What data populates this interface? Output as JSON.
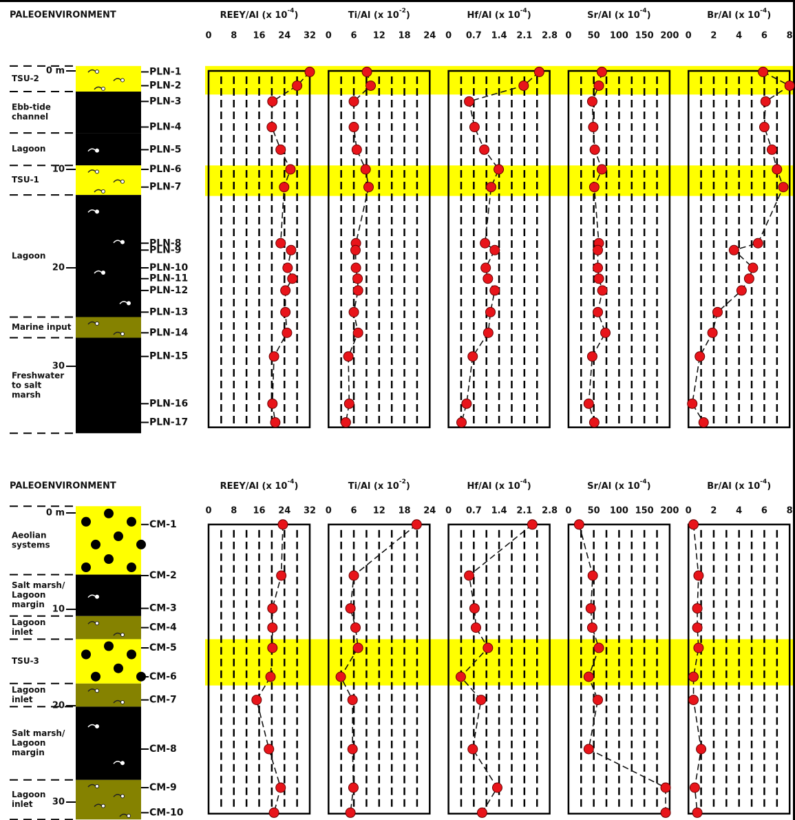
{
  "cores": [
    {
      "header": "PALEOENVIRONMENT",
      "ylim": [
        0,
        36.2
      ],
      "yticks": [
        {
          "value": 0,
          "label": "0 m"
        },
        10,
        20,
        30
      ],
      "samples": {
        "names": [
          "PLN-1",
          "PLN-2",
          "PLN-3",
          "PLN-4",
          "PLN-5",
          "PLN-6",
          "PLN-7",
          "PLN-8",
          "PLN-9",
          "PLN-10",
          "PLN-11",
          "PLN-12",
          "PLN-13",
          "PLN-14",
          "PLN-15",
          "PLN-16",
          "PLN-17"
        ],
        "depths": [
          0.1,
          1.5,
          3.1,
          5.7,
          8.0,
          10.0,
          11.8,
          17.5,
          18.2,
          20.0,
          21.1,
          22.3,
          24.5,
          26.6,
          29.0,
          33.8,
          35.7
        ]
      },
      "highlights": [
        [
          -0.5,
          2.4
        ],
        [
          9.6,
          12.7
        ]
      ],
      "highlight_color": "#ffff00",
      "layers": [
        {
          "label": [
            "TSU-2"
          ],
          "label_color": "#ff0000",
          "top": -0.5,
          "bottom": 2.1,
          "fill": "#ffff00",
          "pattern": "shells"
        },
        {
          "label": [
            "Ebb-tide",
            "channel"
          ],
          "top": 2.1,
          "bottom": 6.3,
          "fill": "#000000",
          "pattern": "none"
        },
        {
          "label": [
            "Lagoon"
          ],
          "top": 6.3,
          "bottom": 9.6,
          "fill": "#000000",
          "pattern": "white-shells"
        },
        {
          "label": [
            "TSU-1"
          ],
          "label_color": "#ff0000",
          "top": 9.6,
          "bottom": 12.6,
          "fill": "#ffff00",
          "pattern": "shells"
        },
        {
          "label": [
            "Lagoon"
          ],
          "top": 12.6,
          "bottom": 25.0,
          "fill": "#000000",
          "pattern": "white-shells"
        },
        {
          "label": [
            "Marine input"
          ],
          "top": 25.0,
          "bottom": 27.1,
          "fill": "#858200",
          "pattern": "shells"
        },
        {
          "label": [
            "Freshwater",
            "to salt",
            "marsh"
          ],
          "top": 27.1,
          "bottom": 36.8,
          "fill": "#000000",
          "pattern": "none"
        }
      ],
      "chart_data": [
        {
          "type": "line",
          "title": "REEY/Al (x 10",
          "title_exponent": "-4",
          "title_suffix": ")",
          "xlim": [
            0,
            32
          ],
          "xticks": [
            0,
            8,
            16,
            24,
            32
          ],
          "grid": true,
          "color": "#e8141a",
          "values": [
            32,
            28,
            20.2,
            20,
            22.8,
            25.9,
            23.9,
            22.8,
            26.1,
            25,
            26.5,
            24.3,
            24.3,
            24.8,
            20.7,
            20.2,
            21.1
          ]
        },
        {
          "type": "line",
          "title": "Ti/Al (x 10",
          "title_exponent": "-2",
          "title_suffix": ")",
          "xlim": [
            0,
            24
          ],
          "xticks": [
            0,
            6,
            12,
            18,
            24
          ],
          "grid": true,
          "color": "#e8141a",
          "values": [
            9.1,
            10,
            6,
            6,
            6.7,
            8.8,
            9.5,
            6.5,
            6.4,
            6.5,
            6.9,
            7,
            6,
            7,
            4.7,
            4.9,
            4.1
          ]
        },
        {
          "type": "line",
          "title": "Hf/Al (x 10",
          "title_exponent": "-4",
          "title_suffix": ")",
          "xlim": [
            0,
            2.8
          ],
          "xticks": [
            0,
            0.7,
            1.4,
            2.1,
            2.8
          ],
          "grid": true,
          "color": "#e8141a",
          "values": [
            2.51,
            2.08,
            0.57,
            0.72,
            0.99,
            1.39,
            1.18,
            1.01,
            1.28,
            1.03,
            1.09,
            1.28,
            1.16,
            1.1,
            0.67,
            0.5,
            0.36
          ]
        },
        {
          "type": "line",
          "title": "Sr/Al (x 10",
          "title_exponent": "-4",
          "title_suffix": ")",
          "xlim": [
            0,
            200
          ],
          "xticks": [
            0,
            50,
            100,
            150,
            200
          ],
          "grid": true,
          "color": "#e8141a",
          "values": [
            66,
            60,
            47,
            49,
            52,
            66,
            51,
            60,
            58,
            58,
            60,
            67,
            58,
            73,
            47,
            40,
            51
          ]
        },
        {
          "type": "line",
          "title": "Br/Al (x 10",
          "title_exponent": "-4",
          "title_suffix": ")",
          "xlim": [
            0,
            8
          ],
          "xticks": [
            0,
            2,
            4,
            6,
            8
          ],
          "grid": true,
          "color": "#e8141a",
          "values": [
            5.9,
            8.0,
            6.1,
            6.0,
            6.6,
            7.0,
            7.5,
            5.5,
            3.6,
            5.1,
            4.8,
            4.2,
            2.3,
            1.9,
            0.9,
            0.3,
            1.2
          ]
        }
      ]
    },
    {
      "header": "PALEOENVIRONMENT",
      "ylim": [
        1.2,
        31.2
      ],
      "yticks": [
        {
          "value": 0,
          "label": "0 m"
        },
        10,
        20,
        30
      ],
      "samples": {
        "names": [
          "CM-1",
          "CM-2",
          "CM-3",
          "CM-4",
          "CM-5",
          "CM-6",
          "CM-7",
          "CM-8",
          "CM-9",
          "CM-10"
        ],
        "depths": [
          1.2,
          6.5,
          9.9,
          11.9,
          14.0,
          17.0,
          19.4,
          24.5,
          28.5,
          31.1
        ]
      },
      "highlights": [
        [
          13.1,
          17.9
        ]
      ],
      "highlight_color": "#ffff00",
      "layers": [
        {
          "label": [
            "Aeolian",
            "systems"
          ],
          "top": -0.7,
          "bottom": 6.4,
          "fill": "#ffff00",
          "pattern": "dots"
        },
        {
          "label": [
            "Salt marsh/",
            "Lagoon",
            "margin"
          ],
          "top": 6.4,
          "bottom": 10.7,
          "fill": "#000000",
          "pattern": "white-shells"
        },
        {
          "label": [
            "Lagoon",
            "inlet"
          ],
          "top": 10.7,
          "bottom": 13.1,
          "fill": "#858200",
          "pattern": "shells"
        },
        {
          "label": [
            "TSU-3"
          ],
          "label_color": "#ff0000",
          "top": 13.1,
          "bottom": 17.7,
          "fill": "#ffff00",
          "pattern": "dots"
        },
        {
          "label": [
            "Lagoon",
            "inlet"
          ],
          "top": 17.7,
          "bottom": 20.1,
          "fill": "#858200",
          "pattern": "shells"
        },
        {
          "label": [
            "Salt marsh/",
            "Lagoon",
            "margin"
          ],
          "top": 20.1,
          "bottom": 27.7,
          "fill": "#000000",
          "pattern": "white-shells"
        },
        {
          "label": [
            "Lagoon",
            "inlet"
          ],
          "top": 27.7,
          "bottom": 31.8,
          "fill": "#858200",
          "pattern": "shells"
        }
      ],
      "chart_data": [
        {
          "type": "line",
          "title": "REEY/Al (x 10",
          "title_exponent": "-4",
          "title_suffix": ")",
          "xlim": [
            0,
            32
          ],
          "xticks": [
            0,
            8,
            16,
            24,
            32
          ],
          "grid": true,
          "color": "#e8141a",
          "values": [
            23.5,
            23,
            20.2,
            20.2,
            20.2,
            19.6,
            15.2,
            19.1,
            22.8,
            20.7
          ]
        },
        {
          "type": "line",
          "title": "Ti/Al (x 10",
          "title_exponent": "-2",
          "title_suffix": ")",
          "xlim": [
            0,
            24
          ],
          "xticks": [
            0,
            6,
            12,
            18,
            24
          ],
          "grid": true,
          "color": "#e8141a",
          "values": [
            20.9,
            6,
            5.2,
            6.4,
            7,
            2.9,
            5.7,
            5.7,
            5.9,
            5.2
          ]
        },
        {
          "type": "line",
          "title": "Hf/Al (x 10",
          "title_exponent": "-4",
          "title_suffix": ")",
          "xlim": [
            0,
            2.8
          ],
          "xticks": [
            0,
            0.7,
            1.4,
            2.1,
            2.8
          ],
          "grid": true,
          "color": "#e8141a",
          "values": [
            2.32,
            0.57,
            0.72,
            0.76,
            1.09,
            0.34,
            0.9,
            0.67,
            1.35,
            0.93
          ]
        },
        {
          "type": "line",
          "title": "Sr/Al (x 10",
          "title_exponent": "-4",
          "title_suffix": ")",
          "xlim": [
            0,
            200
          ],
          "xticks": [
            0,
            50,
            100,
            150,
            200
          ],
          "grid": true,
          "color": "#e8141a",
          "values": [
            21,
            48,
            44,
            47,
            60,
            40,
            58,
            40,
            192,
            192
          ]
        },
        {
          "type": "line",
          "title": "Br/Al (x 10",
          "title_exponent": "-4",
          "title_suffix": ")",
          "xlim": [
            0,
            8
          ],
          "xticks": [
            0,
            2,
            4,
            6,
            8
          ],
          "grid": true,
          "color": "#e8141a",
          "values": [
            0.4,
            0.8,
            0.7,
            0.7,
            0.8,
            0.4,
            0.4,
            1.0,
            0.5,
            0.7
          ]
        }
      ]
    }
  ]
}
